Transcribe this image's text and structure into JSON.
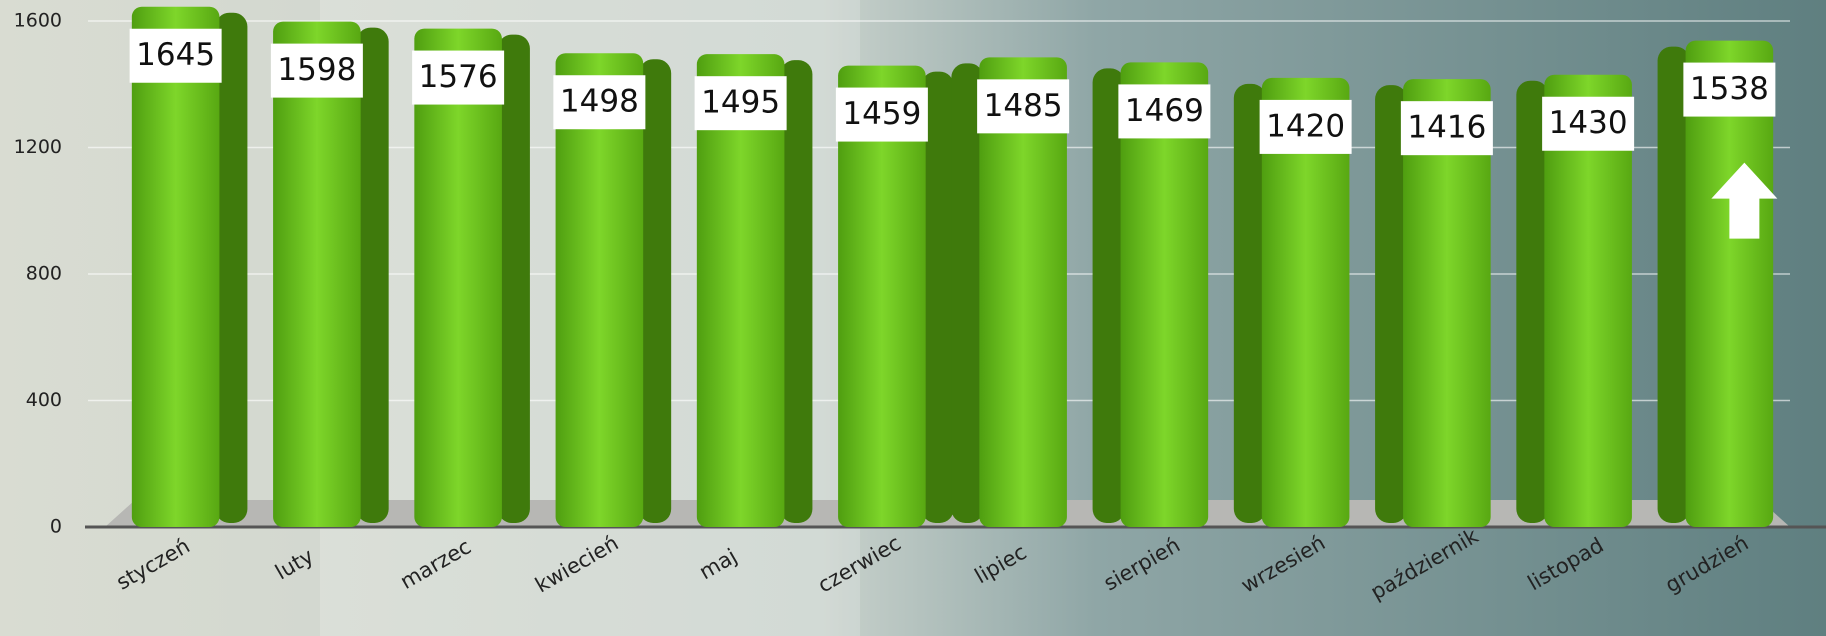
{
  "chart_data": {
    "type": "bar",
    "categories": [
      "styczeń",
      "luty",
      "marzec",
      "kwiecień",
      "maj",
      "czerwiec",
      "lipiec",
      "sierpień",
      "wrzesień",
      "październik",
      "listopad",
      "grudzień"
    ],
    "values": [
      1645,
      1598,
      1576,
      1498,
      1495,
      1459,
      1485,
      1469,
      1420,
      1416,
      1430,
      1538
    ],
    "color": "#62b716",
    "ylim": [
      0,
      1660
    ],
    "yticks": [
      0,
      400,
      800,
      1200,
      1600
    ],
    "grid": true
  }
}
